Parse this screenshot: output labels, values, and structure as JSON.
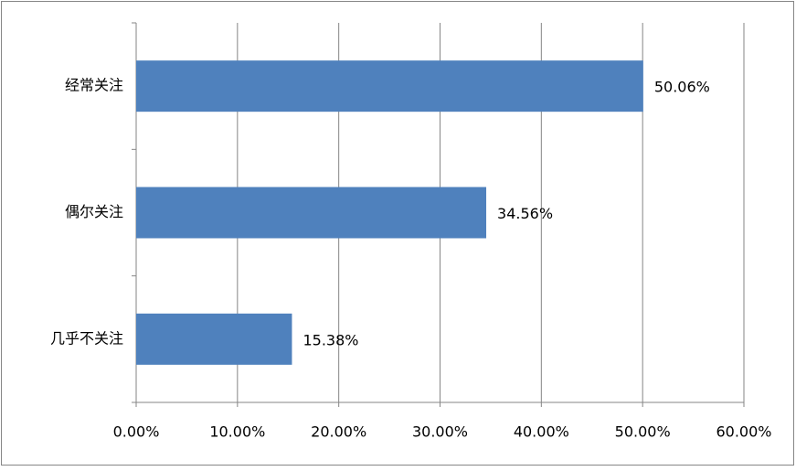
{
  "chart_data": {
    "type": "bar",
    "orientation": "horizontal",
    "categories": [
      "经常关注",
      "偶尔关注",
      "几乎不关注"
    ],
    "values": [
      50.06,
      34.56,
      15.38
    ],
    "value_labels": [
      "50.06%",
      "34.56%",
      "15.38%"
    ],
    "color": "#4f81bd",
    "xlim": [
      0,
      60
    ],
    "xticks": [
      {
        "value": 0,
        "label": "0.00%"
      },
      {
        "value": 10,
        "label": "10.00%"
      },
      {
        "value": 20,
        "label": "20.00%"
      },
      {
        "value": 30,
        "label": "30.00%"
      },
      {
        "value": 40,
        "label": "40.00%"
      },
      {
        "value": 50,
        "label": "50.00%"
      },
      {
        "value": 60,
        "label": "60.00%"
      }
    ],
    "grid": true
  }
}
